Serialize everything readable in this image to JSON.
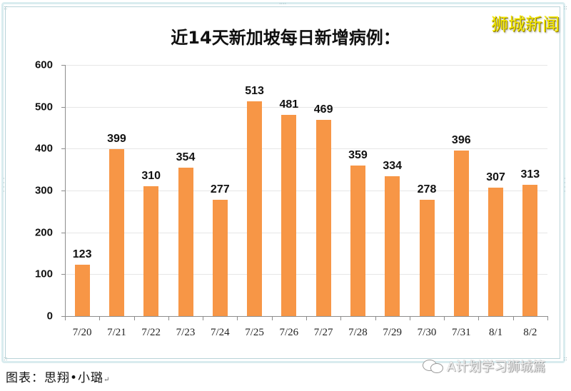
{
  "chart_data": {
    "type": "bar",
    "title": "近14天新加坡每日新增病例：",
    "categories": [
      "7/20",
      "7/21",
      "7/22",
      "7/23",
      "7/24",
      "7/25",
      "7/26",
      "7/27",
      "7/28",
      "7/29",
      "7/30",
      "7/31",
      "8/1",
      "8/2"
    ],
    "values": [
      123,
      399,
      310,
      354,
      277,
      513,
      481,
      469,
      359,
      334,
      278,
      396,
      307,
      313
    ],
    "xlabel": "",
    "ylabel": "",
    "ylim": [
      0,
      600
    ],
    "yticks": [
      0,
      100,
      200,
      300,
      400,
      500,
      600
    ],
    "grid": true,
    "legend": null,
    "bar_color": "#f79646",
    "data_labels": true
  },
  "watermark_top": "狮城新闻",
  "caption": {
    "label": "图表：思翔•小璐",
    "mark": "↵"
  },
  "watermark_bottom": "A计划学习狮城篇",
  "colors": {
    "bar": "#f79646",
    "watermark_top": "#f4e800",
    "frame": "#d9ecef"
  }
}
